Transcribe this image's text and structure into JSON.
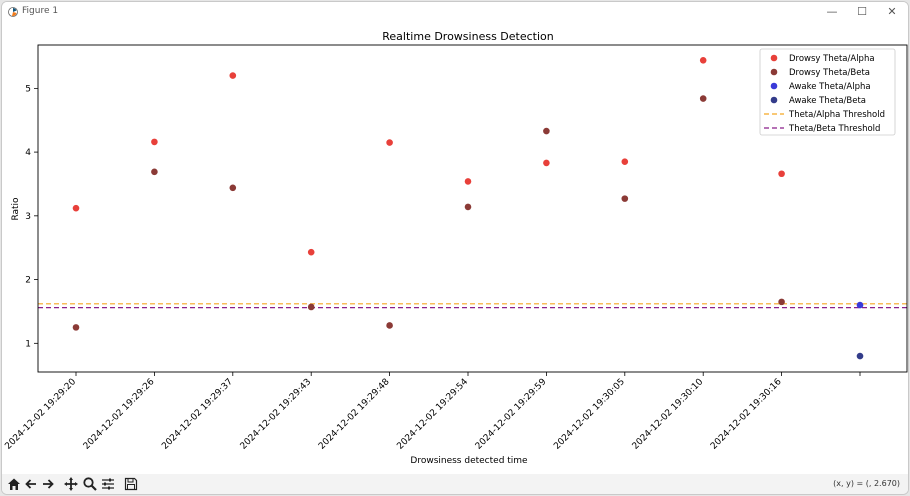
{
  "window": {
    "title": "Figure 1",
    "minimize_label": "—",
    "maximize_label": "☐",
    "close_label": "✕"
  },
  "toolbar": {
    "icons": [
      "home-icon",
      "back-icon",
      "forward-icon",
      "pan-icon",
      "zoom-icon",
      "configure-icon",
      "save-icon"
    ],
    "coords": "(x, y) = (, 2.670)"
  },
  "colors": {
    "drowsy_alpha": "#e8403a",
    "drowsy_beta": "#8b3a36",
    "awake_alpha": "#3a3ad8",
    "awake_beta": "#333c8a",
    "alpha_threshold": "#f5a623",
    "beta_threshold": "#8a1f8a"
  },
  "chart_data": {
    "type": "scatter",
    "title": "Realtime Drowsiness Detection",
    "xlabel": "Drowsiness detected time",
    "ylabel": "Ratio",
    "categories": [
      "2024-12-02 19:29:20",
      "2024-12-02 19:29:26",
      "2024-12-02 19:29:37",
      "2024-12-02 19:29:43",
      "2024-12-02 19:29:48",
      "2024-12-02 19:29:54",
      "2024-12-02 19:29:59",
      "2024-12-02 19:30:05",
      "2024-12-02 19:30:10",
      "2024-12-02 19:30:16",
      ""
    ],
    "yticks": [
      1,
      2,
      3,
      4,
      5
    ],
    "ylim": [
      0.55,
      5.68
    ],
    "series": [
      {
        "name": "Drowsy Theta/Alpha",
        "values": [
          3.12,
          4.16,
          5.2,
          2.43,
          4.15,
          3.54,
          3.83,
          3.85,
          5.44,
          3.66,
          null
        ]
      },
      {
        "name": "Drowsy Theta/Beta",
        "values": [
          1.25,
          3.69,
          3.44,
          1.57,
          1.28,
          3.14,
          4.33,
          3.27,
          4.84,
          1.65,
          null
        ]
      },
      {
        "name": "Awake Theta/Alpha",
        "values": [
          null,
          null,
          null,
          null,
          null,
          null,
          null,
          null,
          null,
          null,
          1.6
        ]
      },
      {
        "name": "Awake Theta/Beta",
        "values": [
          null,
          null,
          null,
          null,
          null,
          null,
          null,
          null,
          null,
          null,
          0.8
        ]
      }
    ],
    "thresholds": [
      {
        "name": "Theta/Alpha Threshold",
        "value": 1.62
      },
      {
        "name": "Theta/Beta Threshold",
        "value": 1.56
      }
    ],
    "legend_position": "top-right",
    "grid": false
  }
}
